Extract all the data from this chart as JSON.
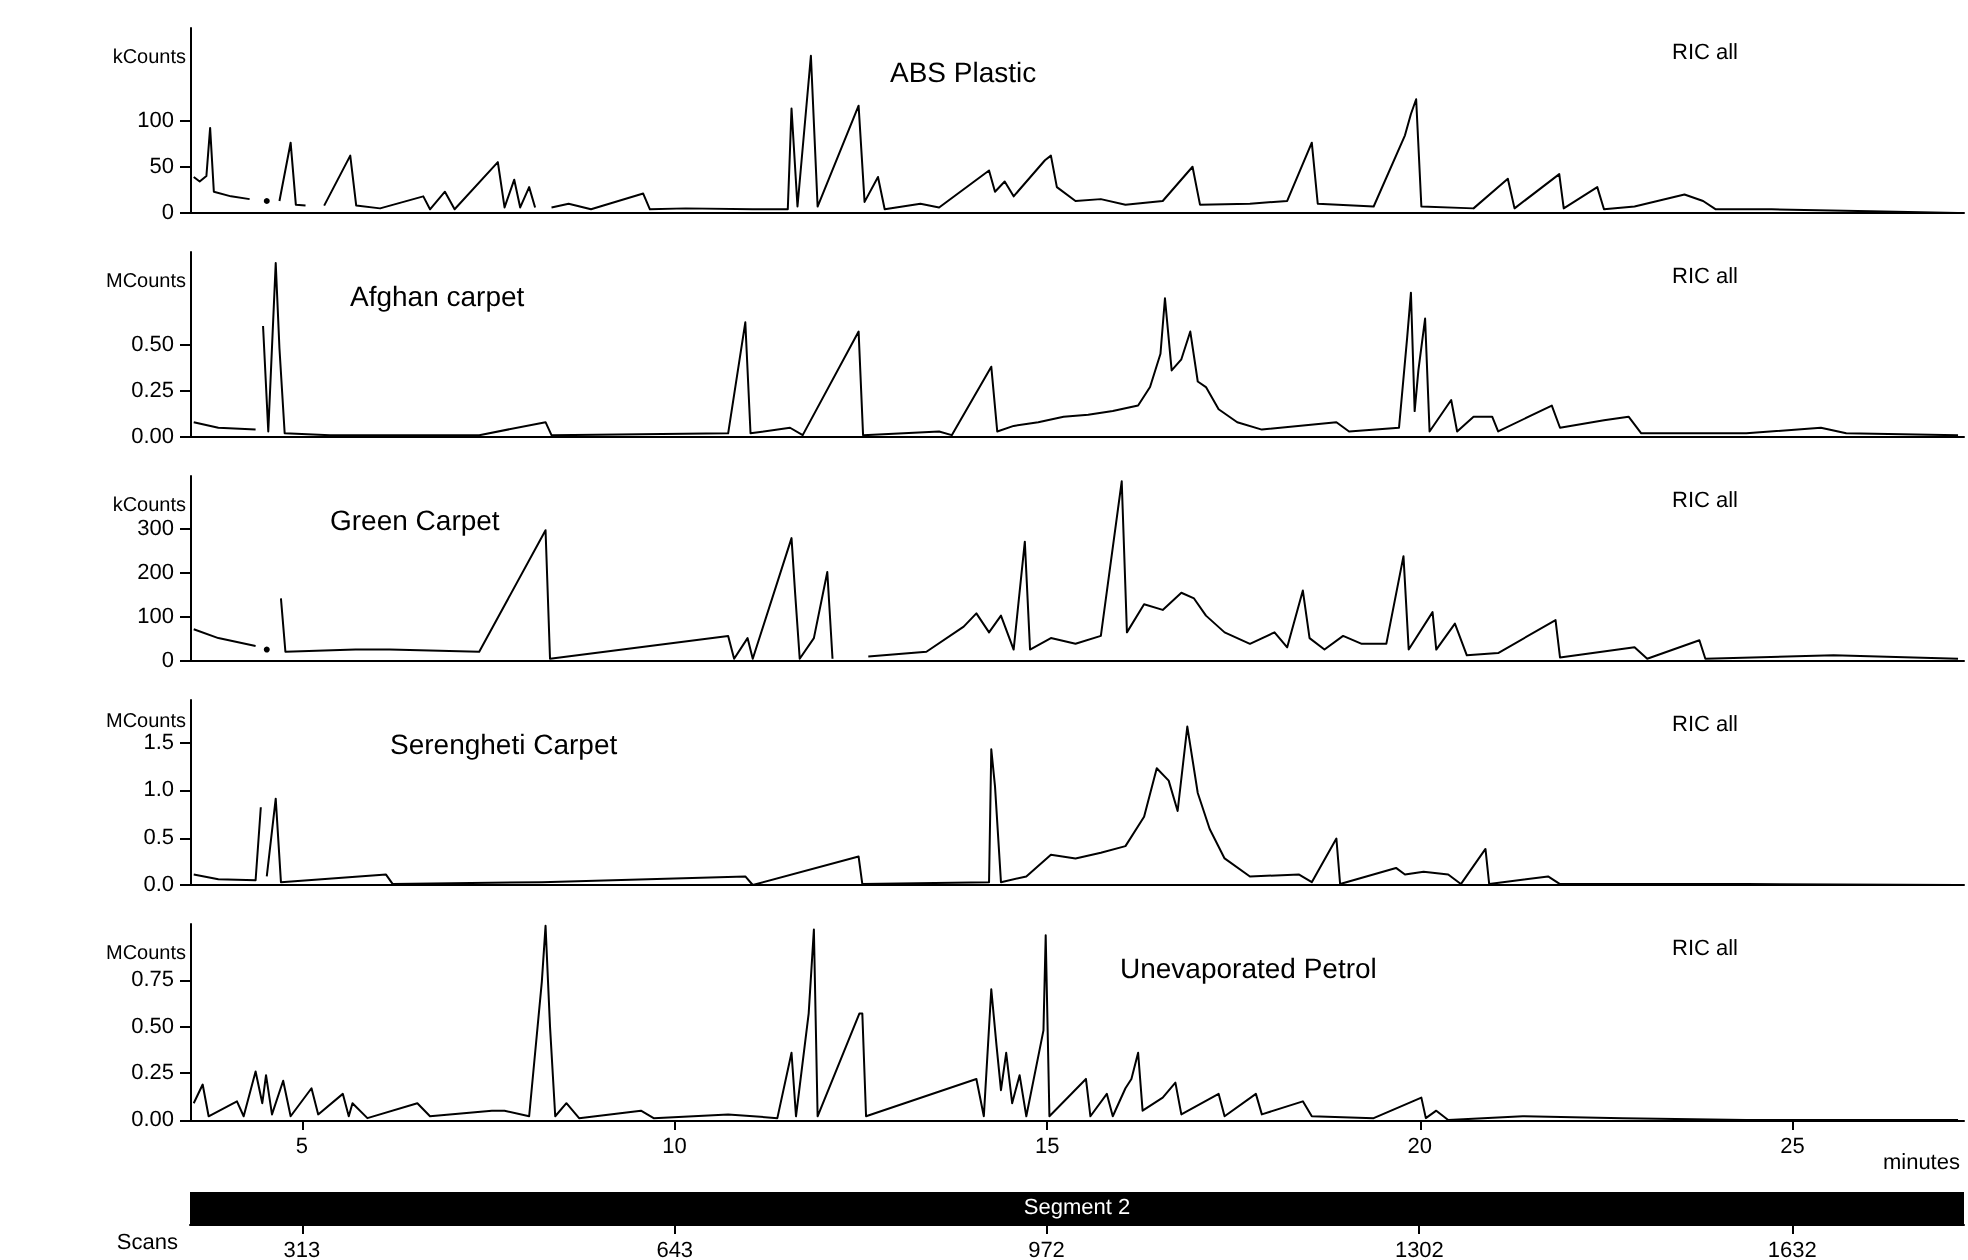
{
  "chart_data": [
    {
      "type": "line",
      "title": "ABS Plastic",
      "ylabel": "kCounts",
      "annotations": [
        "RIC all"
      ],
      "color": "#000000",
      "tick_labels": "y",
      "xlim": [
        3.5,
        27.3
      ],
      "ylim": [
        0,
        200
      ],
      "yticks": [
        0,
        50,
        100
      ],
      "x": [
        3.55,
        3.63,
        3.72,
        3.77,
        3.82,
        4.05,
        4.3,
        4.47,
        4.53,
        4.63,
        4.7,
        4.85,
        4.92,
        5.05,
        5.23,
        5.3,
        5.65,
        5.73,
        6.05,
        6.63,
        6.72,
        6.92,
        7.05,
        7.63,
        7.72,
        7.85,
        7.93,
        8.05,
        8.13,
        8.27,
        8.35,
        8.58,
        8.88,
        9.58,
        9.67,
        10.15,
        11.05,
        11.52,
        11.57,
        11.65,
        11.83,
        11.92,
        12.47,
        12.55,
        12.73,
        12.82,
        13.3,
        13.55,
        14.22,
        14.3,
        14.43,
        14.55,
        14.97,
        15.05,
        15.13,
        15.38,
        15.72,
        16.05,
        16.55,
        16.95,
        17.05,
        17.72,
        18.22,
        18.55,
        18.63,
        19.38,
        19.8,
        19.88,
        19.95,
        20.02,
        20.72,
        21.18,
        21.27,
        21.87,
        21.93,
        22.38,
        22.47,
        22.88,
        23.55,
        23.8,
        23.97,
        24.72,
        26.05,
        27.22
      ],
      "values": [
        39,
        34,
        40,
        92,
        23,
        18,
        15,
        null,
        13,
        null,
        13,
        76,
        9,
        8,
        null,
        8,
        62,
        8,
        5,
        18,
        4,
        23,
        4,
        55,
        6,
        36,
        6,
        28,
        6,
        null,
        6,
        10,
        4,
        21,
        4,
        5,
        4,
        4,
        113,
        7,
        170,
        7,
        116,
        12,
        39,
        4,
        10,
        6,
        46,
        23,
        34,
        18,
        57,
        62,
        28,
        13,
        15,
        9,
        13,
        50,
        9,
        10,
        13,
        76,
        10,
        7,
        84,
        107,
        123,
        7,
        5,
        37,
        5,
        42,
        5,
        28,
        4,
        7,
        20,
        13,
        4,
        4,
        2,
        0
      ]
    },
    {
      "type": "line",
      "title": "Afghan carpet",
      "ylabel": "MCounts",
      "annotations": [
        "RIC all"
      ],
      "color": "#000000",
      "tick_labels": "y",
      "xlim": [
        3.5,
        27.3
      ],
      "ylim": [
        0,
        1.0
      ],
      "yticks": [
        {
          "value": 0,
          "label": "0.00"
        },
        {
          "value": 0.25,
          "label": "0.25"
        },
        {
          "value": 0.5,
          "label": "0.50"
        }
      ],
      "x": [
        3.55,
        3.88,
        4.38,
        4.45,
        4.48,
        4.55,
        4.65,
        4.7,
        4.77,
        5.38,
        7.38,
        8.27,
        8.35,
        10.72,
        10.95,
        11.02,
        11.55,
        11.72,
        12.47,
        12.53,
        13.55,
        13.72,
        14.25,
        14.33,
        14.55,
        14.88,
        15.22,
        15.55,
        15.88,
        16.22,
        16.38,
        16.52,
        16.58,
        16.67,
        16.8,
        16.92,
        17.02,
        17.13,
        17.3,
        17.55,
        17.88,
        18.88,
        19.05,
        19.72,
        19.83,
        19.88,
        19.93,
        19.98,
        20.07,
        20.13,
        20.42,
        20.5,
        20.72,
        20.97,
        21.05,
        21.77,
        21.88,
        22.47,
        22.8,
        22.97,
        24.38,
        25.38,
        25.72,
        27.22
      ],
      "values": [
        0.08,
        0.05,
        0.04,
        null,
        0.6,
        0.03,
        0.94,
        0.48,
        0.02,
        0.01,
        0.01,
        0.08,
        0.01,
        0.02,
        0.62,
        0.02,
        0.05,
        0.01,
        0.57,
        0.01,
        0.03,
        0.01,
        0.38,
        0.03,
        0.06,
        0.08,
        0.11,
        0.12,
        0.14,
        0.17,
        0.27,
        0.45,
        0.75,
        0.36,
        0.42,
        0.57,
        0.3,
        0.27,
        0.15,
        0.08,
        0.04,
        0.08,
        0.03,
        0.05,
        0.54,
        0.78,
        0.14,
        0.36,
        0.64,
        0.03,
        0.2,
        0.03,
        0.11,
        0.11,
        0.03,
        0.17,
        0.05,
        0.09,
        0.11,
        0.02,
        0.02,
        0.05,
        0.02,
        0.01
      ]
    },
    {
      "type": "line",
      "title": "Green Carpet",
      "ylabel": "kCounts",
      "annotations": [
        "RIC all"
      ],
      "color": "#000000",
      "tick_labels": "y",
      "xlim": [
        3.5,
        27.3
      ],
      "ylim": [
        0,
        420
      ],
      "yticks": [
        0,
        100,
        200,
        300
      ],
      "x": [
        3.55,
        3.88,
        4.38,
        4.47,
        4.53,
        4.65,
        4.72,
        4.78,
        5.72,
        6.18,
        7.38,
        8.27,
        8.33,
        10.72,
        10.8,
        10.98,
        11.05,
        11.57,
        11.62,
        11.68,
        11.87,
        12.05,
        12.12,
        12.47,
        12.53,
        12.6,
        13.38,
        13.88,
        14.05,
        14.22,
        14.38,
        14.55,
        14.7,
        14.77,
        15.05,
        15.38,
        15.72,
        16.0,
        16.07,
        16.3,
        16.55,
        16.8,
        16.97,
        17.13,
        17.38,
        17.72,
        18.05,
        18.22,
        18.43,
        18.52,
        18.72,
        18.97,
        19.22,
        19.55,
        19.78,
        19.85,
        20.17,
        20.22,
        20.47,
        20.63,
        21.05,
        21.82,
        21.88,
        22.88,
        23.05,
        23.75,
        23.83,
        25.55,
        27.22
      ],
      "values": [
        72,
        52,
        34,
        null,
        26,
        null,
        142,
        21,
        26,
        26,
        21,
        297,
        5,
        57,
        5,
        52,
        5,
        279,
        150,
        5,
        52,
        202,
        5,
        null,
        null,
        10,
        21,
        78,
        108,
        65,
        103,
        26,
        271,
        26,
        52,
        39,
        57,
        408,
        65,
        129,
        116,
        155,
        142,
        103,
        65,
        39,
        65,
        31,
        160,
        52,
        26,
        57,
        39,
        39,
        238,
        26,
        111,
        26,
        85,
        13,
        18,
        93,
        8,
        31,
        5,
        47,
        5,
        13,
        5
      ]
    },
    {
      "type": "line",
      "title": "Serengheti Carpet",
      "ylabel": "MCounts",
      "annotations": [
        "RIC all"
      ],
      "color": "#000000",
      "tick_labels": "y",
      "xlim": [
        3.5,
        27.3
      ],
      "ylim": [
        0,
        1.95
      ],
      "yticks": [
        {
          "value": 0,
          "label": "0.0"
        },
        {
          "value": 0.5,
          "label": "0.5"
        },
        {
          "value": 1,
          "label": "1.0"
        },
        {
          "value": 1.5,
          "label": "1.5"
        }
      ],
      "x": [
        3.55,
        3.88,
        4.38,
        4.45,
        4.48,
        4.53,
        4.65,
        4.72,
        6.13,
        6.22,
        8.22,
        10.95,
        11.05,
        12.47,
        12.52,
        14.22,
        14.25,
        14.3,
        14.38,
        14.72,
        15.05,
        15.38,
        15.72,
        16.05,
        16.3,
        16.47,
        16.63,
        16.75,
        16.88,
        17.02,
        17.18,
        17.38,
        17.72,
        18.38,
        18.55,
        18.88,
        18.93,
        19.68,
        19.8,
        20.05,
        20.38,
        20.55,
        20.88,
        20.93,
        21.72,
        21.88,
        24.38,
        27.22
      ],
      "values": [
        0.11,
        0.06,
        0.05,
        0.82,
        null,
        0.09,
        0.91,
        0.03,
        0.11,
        0.01,
        0.03,
        0.09,
        0,
        0.3,
        0.01,
        0.03,
        1.43,
        1.04,
        0.03,
        0.09,
        0.32,
        0.28,
        0.34,
        0.41,
        0.72,
        1.23,
        1.1,
        0.78,
        1.67,
        0.97,
        0.59,
        0.28,
        0.09,
        0.11,
        0.03,
        0.49,
        0.01,
        0.18,
        0.11,
        0.14,
        0.11,
        0.01,
        0.38,
        0.01,
        0.09,
        0.01,
        0.01,
        0
      ]
    },
    {
      "type": "line",
      "title": "Unevaporated Petrol",
      "ylabel": "MCounts",
      "xlabel": "minutes",
      "x2label": "Scans",
      "annotations": [
        "RIC all",
        "Segment 2"
      ],
      "color": "#000000",
      "xlim": [
        3.5,
        27.3
      ],
      "xticks": [
        5,
        10,
        15,
        20,
        25
      ],
      "x2lim": [
        214,
        1784
      ],
      "x2ticks": [
        313,
        643,
        972,
        1302,
        1632
      ],
      "ylim": [
        0,
        1.05
      ],
      "yticks": [
        {
          "value": 0,
          "label": "0.00"
        },
        {
          "value": 0.25,
          "label": "0.25"
        },
        {
          "value": 0.5,
          "label": "0.50"
        },
        {
          "value": 0.75,
          "label": "0.75"
        }
      ],
      "x": [
        3.55,
        3.67,
        3.75,
        4.13,
        4.22,
        4.38,
        4.47,
        4.52,
        4.6,
        4.75,
        4.85,
        5.13,
        5.22,
        5.55,
        5.63,
        5.68,
        5.88,
        6.55,
        6.72,
        7.55,
        7.72,
        8.05,
        8.22,
        8.27,
        8.33,
        8.4,
        8.55,
        8.72,
        9.55,
        9.72,
        10.72,
        11.38,
        11.57,
        11.63,
        11.8,
        11.87,
        11.92,
        12.48,
        12.52,
        12.57,
        14.05,
        14.15,
        14.25,
        14.32,
        14.38,
        14.45,
        14.53,
        14.63,
        14.72,
        14.95,
        14.98,
        15.03,
        15.52,
        15.58,
        15.8,
        15.88,
        16.05,
        16.13,
        16.22,
        16.28,
        16.55,
        16.72,
        16.8,
        17.3,
        17.38,
        17.8,
        17.88,
        18.43,
        18.55,
        19.38,
        20.02,
        20.08,
        20.22,
        20.38,
        21.38,
        22.72,
        24.38,
        27.22
      ],
      "values": [
        0.09,
        0.19,
        0.02,
        0.1,
        0.02,
        0.26,
        0.09,
        0.24,
        0.03,
        0.21,
        0.02,
        0.17,
        0.03,
        0.14,
        0.02,
        0.09,
        0.01,
        0.09,
        0.02,
        0.05,
        0.05,
        0.02,
        0.74,
        1.04,
        0.5,
        0.02,
        0.09,
        0.01,
        0.05,
        0.01,
        0.03,
        0.01,
        0.36,
        0.02,
        0.57,
        1.02,
        0.02,
        0.57,
        0.57,
        0.02,
        0.22,
        0.02,
        0.7,
        0.4,
        0.16,
        0.36,
        0.09,
        0.24,
        0.02,
        0.48,
        0.99,
        0.02,
        0.22,
        0.02,
        0.14,
        0.02,
        0.17,
        0.22,
        0.36,
        0.05,
        0.12,
        0.2,
        0.03,
        0.14,
        0.02,
        0.14,
        0.03,
        0.1,
        0.02,
        0.01,
        0.12,
        0.01,
        0.05,
        0,
        0.02,
        0.01,
        0,
        0
      ]
    }
  ]
}
